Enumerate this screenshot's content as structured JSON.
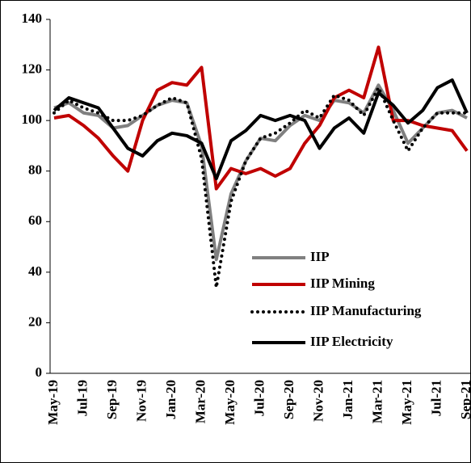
{
  "chart_data": {
    "type": "line",
    "categories": [
      "May-19",
      null,
      "Jul-19",
      null,
      "Sep-19",
      null,
      "Nov-19",
      null,
      "Jan-20",
      null,
      "Mar-20",
      null,
      "May-20",
      null,
      "Jul-20",
      null,
      "Sep-20",
      null,
      "Nov-20",
      null,
      "Jan-21",
      null,
      "Mar-21",
      null,
      "May-21",
      null,
      "Jul-21",
      null,
      "Sep-21"
    ],
    "series": [
      {
        "name": "IIP",
        "color": "#808080",
        "style": "solid",
        "values": [
          105,
          107,
          103,
          102,
          97,
          98,
          102,
          106,
          108,
          107,
          90,
          45,
          71,
          84,
          93,
          92,
          98,
          102,
          100,
          108,
          107,
          103,
          114,
          104,
          91,
          97,
          103,
          104,
          101
        ]
      },
      {
        "name": "IIP Mining",
        "color": "#c00000",
        "style": "solid",
        "values": [
          101,
          102,
          98,
          93,
          86,
          80,
          100,
          112,
          115,
          114,
          121,
          73,
          81,
          79,
          81,
          78,
          81,
          91,
          98,
          109,
          112,
          109,
          129,
          100,
          100,
          98,
          97,
          96,
          88
        ]
      },
      {
        "name": "IIP Manufacturing",
        "color": "#000000",
        "style": "dotted",
        "values": [
          103,
          108,
          105,
          103,
          100,
          100,
          102,
          106,
          109,
          107,
          85,
          34,
          68,
          84,
          93,
          95,
          99,
          104,
          101,
          110,
          108,
          102,
          113,
          100,
          88,
          97,
          103,
          103,
          103
        ]
      },
      {
        "name": "IIP Electricity",
        "color": "#000000",
        "style": "solid",
        "values": [
          104,
          109,
          107,
          105,
          97,
          89,
          86,
          92,
          95,
          94,
          91,
          77,
          92,
          96,
          102,
          100,
          102,
          100,
          89,
          97,
          101,
          95,
          111,
          106,
          99,
          104,
          113,
          116,
          103
        ]
      }
    ],
    "ylim": [
      0,
      140
    ],
    "yticks": [
      0,
      20,
      40,
      60,
      80,
      100,
      120,
      140
    ]
  }
}
